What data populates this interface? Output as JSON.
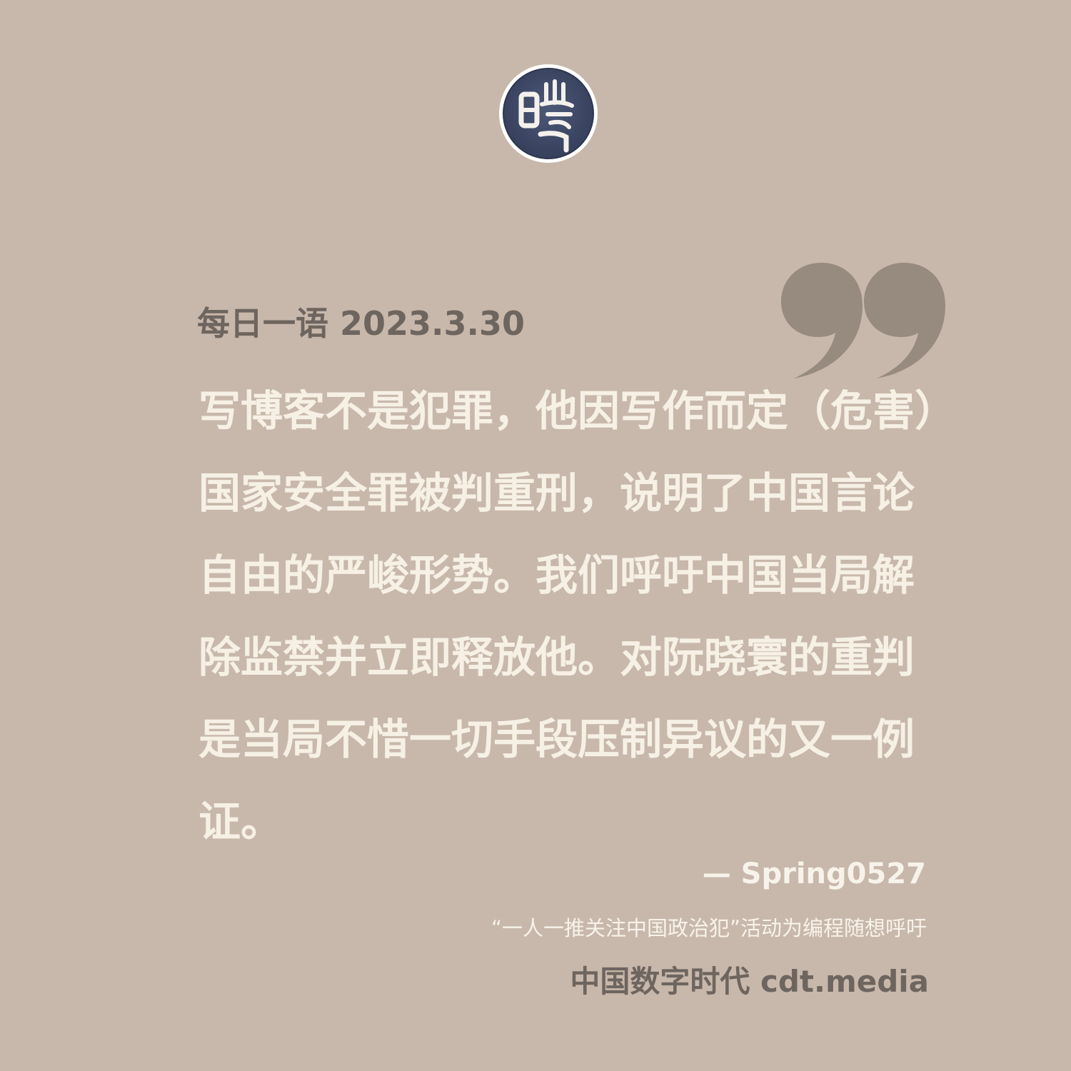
{
  "header": {
    "date_line": "每日一语 2023.3.30"
  },
  "quote": {
    "lines": [
      "写博客不是犯罪，他因写作而定（危害）",
      "国家安全罪被判重刑，说明了中国言论",
      "自由的严峻形势。我们呼吁中国当局解",
      "除监禁并立即释放他。对阮晓寰的重判",
      "是当局不惜一切手段压制异议的又一例",
      "证。"
    ]
  },
  "attribution": {
    "author": "— Spring0527",
    "campaign": "“一人一推关注中国政治犯”活动为编程随想呼吁"
  },
  "footer": {
    "brand": "中国数字时代 cdt.media"
  },
  "colors": {
    "background": "#c8b8ab",
    "quote_text": "#f6f0e5",
    "muted_text": "#6e655f",
    "quote_mark": "#978a7f",
    "logo_fill": "#3f4a68"
  }
}
